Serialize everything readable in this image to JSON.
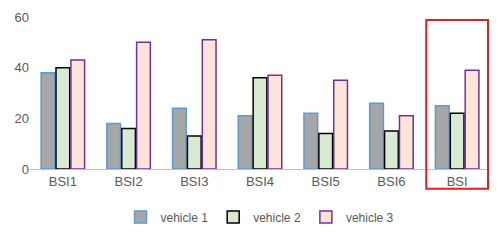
{
  "chart_data": {
    "type": "bar",
    "categories": [
      "BSI1",
      "BSI2",
      "BSI3",
      "BSI4",
      "BSI5",
      "BSI6",
      "BSI"
    ],
    "series": [
      {
        "name": "vehicle 1",
        "color": "#a6a6a6",
        "values": [
          38,
          18,
          24,
          21,
          22,
          26,
          25
        ]
      },
      {
        "name": "vehicle 2",
        "color": "#d9ead3",
        "values": [
          40,
          16,
          13,
          36,
          14,
          15,
          22
        ]
      },
      {
        "name": "vehicle 3",
        "color": "#fde4d8",
        "values": [
          43,
          50,
          51,
          37,
          35,
          21,
          39
        ]
      }
    ],
    "ylim": [
      0,
      60
    ],
    "yticks": [
      0,
      20,
      40,
      60
    ],
    "grid": false,
    "legend": "bottom"
  }
}
